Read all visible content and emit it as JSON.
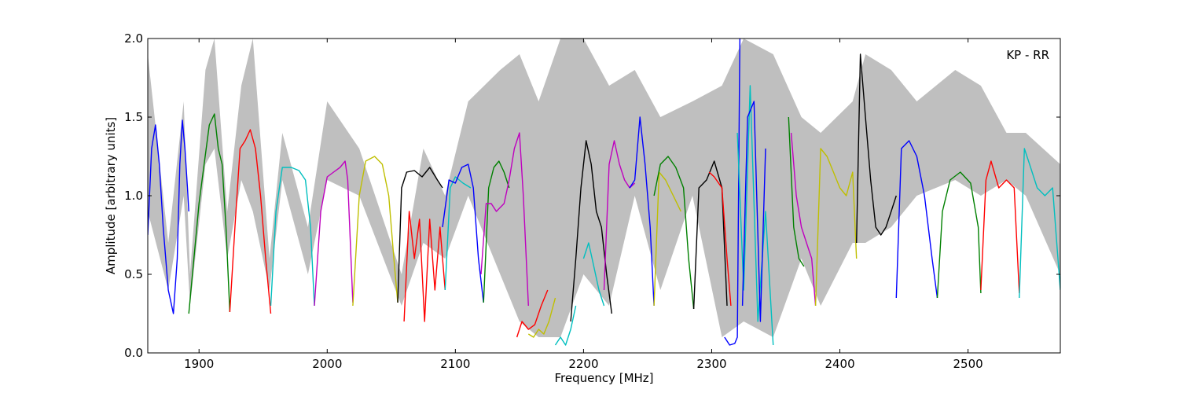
{
  "chart_data": {
    "type": "line",
    "title": "",
    "xlabel": "Frequency [MHz]",
    "ylabel": "Amplitude [arbitrary units]",
    "annotation": "KP - RR",
    "xlim": [
      1860,
      2572
    ],
    "ylim": [
      0.0,
      2.0
    ],
    "xticks": [
      1900,
      2000,
      2100,
      2200,
      2300,
      2400,
      2500
    ],
    "yticks": [
      0.0,
      0.5,
      1.0,
      1.5,
      2.0
    ],
    "xtick_labels": [
      "1900",
      "2000",
      "2100",
      "2200",
      "2300",
      "2400",
      "2500"
    ],
    "ytick_labels": [
      "0.0",
      "0.5",
      "1.0",
      "1.5",
      "2.0"
    ],
    "grid": false,
    "colors": [
      "#0000ff",
      "#008000",
      "#ff0000",
      "#00bfbf",
      "#bf00bf",
      "#bfbf00",
      "#000000"
    ],
    "envelope_color": "#bfbfbf",
    "envelope": [
      [
        1860,
        0.9,
        1.9
      ],
      [
        1876,
        0.4,
        0.7
      ],
      [
        1888,
        1.0,
        1.6
      ],
      [
        1893,
        0.3,
        0.5
      ],
      [
        1905,
        1.2,
        1.8
      ],
      [
        1912,
        1.3,
        2.0
      ],
      [
        1922,
        0.6,
        0.9
      ],
      [
        1933,
        1.1,
        1.7
      ],
      [
        1942,
        0.9,
        2.0
      ],
      [
        1955,
        0.4,
        0.6
      ],
      [
        1965,
        1.1,
        1.4
      ],
      [
        1985,
        0.5,
        0.8
      ],
      [
        2000,
        1.1,
        1.6
      ],
      [
        2025,
        1.0,
        1.3
      ],
      [
        2058,
        0.3,
        0.5
      ],
      [
        2075,
        0.7,
        1.3
      ],
      [
        2092,
        0.6,
        1.0
      ],
      [
        2110,
        1.0,
        1.6
      ],
      [
        2135,
        0.5,
        1.8
      ],
      [
        2150,
        0.2,
        1.9
      ],
      [
        2165,
        0.1,
        1.6
      ],
      [
        2182,
        0.1,
        2.0
      ],
      [
        2200,
        0.5,
        2.0
      ],
      [
        2220,
        0.3,
        1.7
      ],
      [
        2240,
        1.0,
        1.8
      ],
      [
        2260,
        0.4,
        1.5
      ],
      [
        2285,
        1.0,
        1.6
      ],
      [
        2308,
        0.1,
        1.7
      ],
      [
        2325,
        0.2,
        2.0
      ],
      [
        2348,
        0.1,
        1.9
      ],
      [
        2370,
        0.6,
        1.5
      ],
      [
        2385,
        0.3,
        1.4
      ],
      [
        2410,
        0.7,
        1.6
      ],
      [
        2420,
        0.7,
        1.9
      ],
      [
        2440,
        0.8,
        1.8
      ],
      [
        2460,
        1.0,
        1.6
      ],
      [
        2490,
        1.1,
        1.8
      ],
      [
        2510,
        1.0,
        1.7
      ],
      [
        2530,
        1.1,
        1.4
      ],
      [
        2545,
        1.0,
        1.4
      ],
      [
        2572,
        0.5,
        1.2
      ]
    ],
    "series": [
      {
        "color": "#0000ff",
        "x": [
          1860,
          1863,
          1866,
          1869,
          1872,
          1876,
          1880,
          1883,
          1885,
          1887,
          1889,
          1891,
          1892
        ],
        "y": [
          0.75,
          1.3,
          1.45,
          1.2,
          0.8,
          0.4,
          0.25,
          0.6,
          1.2,
          1.48,
          1.3,
          1.05,
          0.9
        ]
      },
      {
        "color": "#008000",
        "x": [
          1892,
          1896,
          1900,
          1904,
          1908,
          1912,
          1915,
          1918,
          1921,
          1924
        ],
        "y": [
          0.25,
          0.6,
          0.95,
          1.2,
          1.45,
          1.52,
          1.3,
          1.2,
          0.8,
          0.26
        ]
      },
      {
        "color": "#ff0000",
        "x": [
          1924,
          1928,
          1932,
          1936,
          1940,
          1944,
          1948,
          1952,
          1956
        ],
        "y": [
          0.26,
          0.8,
          1.3,
          1.35,
          1.42,
          1.3,
          1.0,
          0.6,
          0.25
        ]
      },
      {
        "color": "#00bfbf",
        "x": [
          1956,
          1960,
          1965,
          1972,
          1978,
          1983,
          1987,
          1990
        ],
        "y": [
          0.3,
          0.9,
          1.18,
          1.18,
          1.16,
          1.1,
          0.8,
          0.3
        ]
      },
      {
        "color": "#bf00bf",
        "x": [
          1990,
          1995,
          2000,
          2005,
          2010,
          2014,
          2016,
          2020
        ],
        "y": [
          0.3,
          0.9,
          1.12,
          1.15,
          1.18,
          1.22,
          1.1,
          0.32
        ]
      },
      {
        "color": "#bfbf00",
        "x": [
          2020,
          2025,
          2030,
          2037,
          2043,
          2048,
          2052,
          2055
        ],
        "y": [
          0.3,
          1.0,
          1.22,
          1.25,
          1.2,
          1.0,
          0.6,
          0.32
        ]
      },
      {
        "color": "#000000",
        "x": [
          2055,
          2058,
          2062,
          2068,
          2074,
          2080,
          2086,
          2090
        ],
        "y": [
          0.32,
          1.05,
          1.15,
          1.16,
          1.12,
          1.18,
          1.1,
          1.05
        ]
      },
      {
        "color": "#ff0000",
        "x": [
          2060,
          2064,
          2068,
          2072,
          2076,
          2080,
          2084,
          2088,
          2092
        ],
        "y": [
          0.2,
          0.9,
          0.6,
          0.85,
          0.2,
          0.85,
          0.4,
          0.8,
          0.4
        ]
      },
      {
        "color": "#00bfbf",
        "x": [
          2092,
          2096,
          2100,
          2106,
          2112
        ],
        "y": [
          0.4,
          1.05,
          1.12,
          1.08,
          1.05
        ]
      },
      {
        "color": "#0000ff",
        "x": [
          2090,
          2095,
          2100,
          2105,
          2110,
          2114,
          2118,
          2122
        ],
        "y": [
          0.8,
          1.1,
          1.08,
          1.18,
          1.2,
          1.05,
          0.6,
          0.32
        ]
      },
      {
        "color": "#008000",
        "x": [
          2122,
          2126,
          2130,
          2134,
          2138,
          2142
        ],
        "y": [
          0.32,
          1.05,
          1.18,
          1.22,
          1.15,
          1.05
        ]
      },
      {
        "color": "#bf00bf",
        "x": [
          2120,
          2124,
          2128,
          2132,
          2138,
          2142,
          2146,
          2150,
          2153,
          2157
        ],
        "y": [
          0.5,
          0.95,
          0.95,
          0.9,
          0.95,
          1.1,
          1.3,
          1.4,
          1.0,
          0.3
        ]
      },
      {
        "color": "#ff0000",
        "x": [
          2148,
          2152,
          2157,
          2162,
          2167,
          2172
        ],
        "y": [
          0.1,
          0.2,
          0.15,
          0.18,
          0.3,
          0.4
        ]
      },
      {
        "color": "#bfbf00",
        "x": [
          2157,
          2161,
          2165,
          2169,
          2173,
          2178
        ],
        "y": [
          0.12,
          0.1,
          0.15,
          0.12,
          0.2,
          0.35
        ]
      },
      {
        "color": "#00bfbf",
        "x": [
          2178,
          2182,
          2186,
          2190,
          2194
        ],
        "y": [
          0.05,
          0.1,
          0.05,
          0.15,
          0.3
        ]
      },
      {
        "color": "#000000",
        "x": [
          2190,
          2194,
          2198,
          2202,
          2206,
          2210,
          2214,
          2218,
          2222
        ],
        "y": [
          0.2,
          0.6,
          1.05,
          1.35,
          1.2,
          0.9,
          0.8,
          0.5,
          0.25
        ]
      },
      {
        "color": "#00bfbf",
        "x": [
          2200,
          2204,
          2208,
          2212,
          2216
        ],
        "y": [
          0.6,
          0.7,
          0.55,
          0.4,
          0.3
        ]
      },
      {
        "color": "#bf00bf",
        "x": [
          2216,
          2220,
          2224,
          2228,
          2232,
          2236,
          2240
        ],
        "y": [
          0.4,
          1.2,
          1.35,
          1.2,
          1.1,
          1.05,
          1.08
        ]
      },
      {
        "color": "#0000ff",
        "x": [
          2236,
          2240,
          2244,
          2248,
          2252,
          2255
        ],
        "y": [
          1.05,
          1.1,
          1.5,
          1.2,
          0.8,
          0.3
        ]
      },
      {
        "color": "#bfbf00",
        "x": [
          2255,
          2259,
          2264,
          2270,
          2276
        ],
        "y": [
          0.3,
          1.15,
          1.1,
          1.0,
          0.9
        ]
      },
      {
        "color": "#008000",
        "x": [
          2255,
          2260,
          2266,
          2272,
          2278,
          2282,
          2286
        ],
        "y": [
          1.0,
          1.2,
          1.25,
          1.18,
          1.05,
          0.6,
          0.28
        ]
      },
      {
        "color": "#000000",
        "x": [
          2286,
          2290,
          2296,
          2302,
          2308,
          2312
        ],
        "y": [
          0.28,
          1.05,
          1.1,
          1.22,
          1.05,
          0.3
        ]
      },
      {
        "color": "#ff0000",
        "x": [
          2298,
          2302,
          2308,
          2312,
          2315
        ],
        "y": [
          1.15,
          1.12,
          1.05,
          0.6,
          0.3
        ]
      },
      {
        "color": "#0000ff",
        "x": [
          2310,
          2314,
          2318,
          2320,
          2322
        ],
        "y": [
          0.1,
          0.05,
          0.06,
          0.1,
          2.0
        ]
      },
      {
        "color": "#00bfbf",
        "x": [
          2320,
          2325,
          2330,
          2336,
          2342,
          2348
        ],
        "y": [
          1.4,
          0.4,
          1.7,
          0.2,
          0.9,
          0.05
        ]
      },
      {
        "color": "#0000ff",
        "x": [
          2324,
          2328,
          2333,
          2338,
          2342
        ],
        "y": [
          0.3,
          1.5,
          1.6,
          0.2,
          1.3
        ]
      },
      {
        "color": "#008000",
        "x": [
          2360,
          2364,
          2368,
          2372
        ],
        "y": [
          1.5,
          0.8,
          0.6,
          0.55
        ]
      },
      {
        "color": "#bf00bf",
        "x": [
          2362,
          2366,
          2370,
          2374,
          2378,
          2381
        ],
        "y": [
          1.4,
          1.0,
          0.8,
          0.7,
          0.6,
          0.3
        ]
      },
      {
        "color": "#bfbf00",
        "x": [
          2381,
          2385,
          2390,
          2395,
          2400,
          2405,
          2410,
          2413
        ],
        "y": [
          0.3,
          1.3,
          1.25,
          1.15,
          1.05,
          1.0,
          1.15,
          0.6
        ]
      },
      {
        "color": "#000000",
        "x": [
          2413,
          2416,
          2420,
          2424,
          2428,
          2432,
          2436,
          2440,
          2444
        ],
        "y": [
          0.7,
          1.9,
          1.5,
          1.1,
          0.8,
          0.75,
          0.8,
          0.9,
          1.0
        ]
      },
      {
        "color": "#0000ff",
        "x": [
          2444,
          2448,
          2454,
          2460,
          2466,
          2472,
          2476
        ],
        "y": [
          0.35,
          1.3,
          1.35,
          1.25,
          1.0,
          0.6,
          0.35
        ]
      },
      {
        "color": "#008000",
        "x": [
          2476,
          2480,
          2486,
          2494,
          2502,
          2508,
          2510
        ],
        "y": [
          0.35,
          0.9,
          1.1,
          1.15,
          1.08,
          0.8,
          0.38
        ]
      },
      {
        "color": "#ff0000",
        "x": [
          2510,
          2514,
          2518,
          2524,
          2530,
          2536,
          2540
        ],
        "y": [
          0.4,
          1.1,
          1.22,
          1.05,
          1.1,
          1.05,
          0.38
        ]
      },
      {
        "color": "#00bfbf",
        "x": [
          2540,
          2544,
          2548,
          2554,
          2560,
          2566,
          2572
        ],
        "y": [
          0.35,
          1.3,
          1.2,
          1.05,
          1.0,
          1.05,
          0.4
        ]
      }
    ]
  }
}
